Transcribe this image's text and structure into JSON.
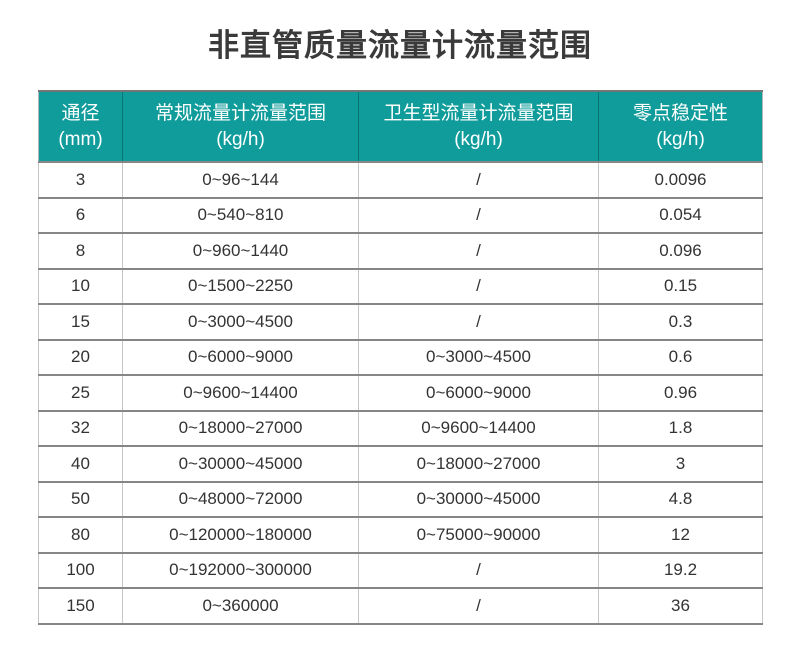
{
  "title": "非直管质量流量计流量范围",
  "colors": {
    "header_bg": "#0f9c9b",
    "header_text": "#ffffff",
    "row_divider": "#868686",
    "col_divider": "#c7c7c7",
    "cell_text": "#333333",
    "title_text": "#3a3a3a"
  },
  "table": {
    "columns": [
      {
        "title": "通径",
        "unit": "(mm)"
      },
      {
        "title": "常规流量计流量范围",
        "unit": "(kg/h)"
      },
      {
        "title": "卫生型流量计流量范围",
        "unit": "(kg/h)"
      },
      {
        "title": "零点稳定性",
        "unit": "(kg/h)"
      }
    ],
    "rows": [
      {
        "dn": "3",
        "standard_range": "0~96~144",
        "sanitary_range": "/",
        "zero_stability": "0.0096"
      },
      {
        "dn": "6",
        "standard_range": "0~540~810",
        "sanitary_range": "/",
        "zero_stability": "0.054"
      },
      {
        "dn": "8",
        "standard_range": "0~960~1440",
        "sanitary_range": "/",
        "zero_stability": "0.096"
      },
      {
        "dn": "10",
        "standard_range": "0~1500~2250",
        "sanitary_range": "/",
        "zero_stability": "0.15"
      },
      {
        "dn": "15",
        "standard_range": "0~3000~4500",
        "sanitary_range": "/",
        "zero_stability": "0.3"
      },
      {
        "dn": "20",
        "standard_range": "0~6000~9000",
        "sanitary_range": "0~3000~4500",
        "zero_stability": "0.6"
      },
      {
        "dn": "25",
        "standard_range": "0~9600~14400",
        "sanitary_range": "0~6000~9000",
        "zero_stability": "0.96"
      },
      {
        "dn": "32",
        "standard_range": "0~18000~27000",
        "sanitary_range": "0~9600~14400",
        "zero_stability": "1.8"
      },
      {
        "dn": "40",
        "standard_range": "0~30000~45000",
        "sanitary_range": "0~18000~27000",
        "zero_stability": "3"
      },
      {
        "dn": "50",
        "standard_range": "0~48000~72000",
        "sanitary_range": "0~30000~45000",
        "zero_stability": "4.8"
      },
      {
        "dn": "80",
        "standard_range": "0~120000~180000",
        "sanitary_range": "0~75000~90000",
        "zero_stability": "12"
      },
      {
        "dn": "100",
        "standard_range": "0~192000~300000",
        "sanitary_range": "/",
        "zero_stability": "19.2"
      },
      {
        "dn": "150",
        "standard_range": "0~360000",
        "sanitary_range": "/",
        "zero_stability": "36"
      }
    ]
  }
}
